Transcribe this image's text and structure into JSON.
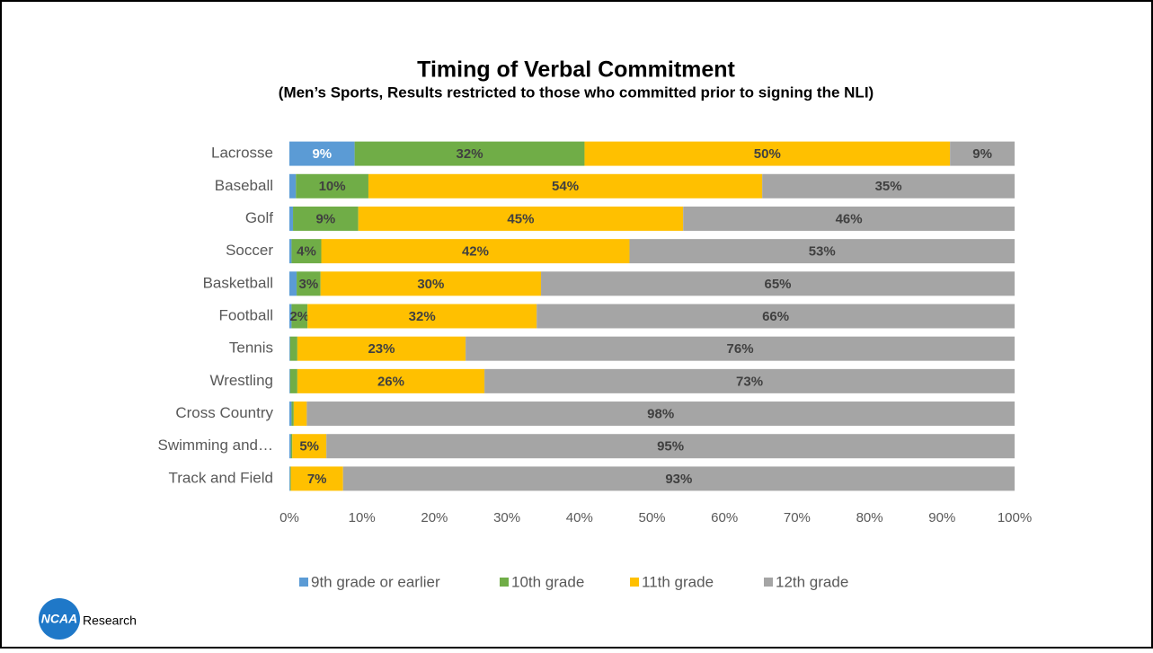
{
  "chart_data": {
    "type": "stacked_bar_horizontal",
    "title": "Timing of Verbal Commitment",
    "subtitle": "(Men’s Sports, Results restricted to those who committed prior to signing the NLI)",
    "categories": [
      "Lacrosse",
      "Baseball",
      "Golf",
      "Soccer",
      "Basketball",
      "Football",
      "Tennis",
      "Wrestling",
      "Cross Country",
      "Swimming and…",
      "Track and Field"
    ],
    "series": [
      {
        "name": "9th grade or earlier",
        "color": "#5b9bd5",
        "values": [
          9,
          0.9,
          0.5,
          0.3,
          1.0,
          0.3,
          0.1,
          0.1,
          0.3,
          0.2,
          0.1
        ],
        "value_labels": [
          "9%",
          null,
          null,
          null,
          null,
          null,
          null,
          null,
          null,
          null,
          null
        ]
      },
      {
        "name": "10th grade",
        "color": "#70ad47",
        "values": [
          31.7,
          10.0,
          9.0,
          4.1,
          3.3,
          2.2,
          1.0,
          1.0,
          0.3,
          0.2,
          0.1
        ],
        "value_labels": [
          "32%",
          "10%",
          "9%",
          "4%",
          "3%",
          "2%",
          null,
          null,
          null,
          null,
          null
        ]
      },
      {
        "name": "11th grade",
        "color": "#ffc000",
        "values": [
          50.4,
          54.3,
          44.8,
          42.5,
          30.4,
          31.6,
          23.2,
          25.8,
          1.8,
          4.7,
          7.2
        ],
        "value_labels": [
          "50%",
          "54%",
          "45%",
          "42%",
          "30%",
          "32%",
          "23%",
          "26%",
          null,
          "5%",
          "7%"
        ]
      },
      {
        "name": "12th grade",
        "color": "#a5a5a5",
        "values": [
          8.9,
          34.8,
          45.7,
          53.1,
          65.3,
          65.9,
          75.7,
          73.1,
          97.6,
          94.9,
          92.6
        ],
        "value_labels": [
          "9%",
          "35%",
          "46%",
          "53%",
          "65%",
          "66%",
          "76%",
          "73%",
          "98%",
          "95%",
          "93%"
        ]
      }
    ],
    "xlim": [
      0,
      100
    ],
    "xticks": [
      {
        "value": 0,
        "label": "0%"
      },
      {
        "value": 10,
        "label": "10%"
      },
      {
        "value": 20,
        "label": "20%"
      },
      {
        "value": 30,
        "label": "30%"
      },
      {
        "value": 40,
        "label": "40%"
      },
      {
        "value": 50,
        "label": "50%"
      },
      {
        "value": 60,
        "label": "60%"
      },
      {
        "value": 70,
        "label": "70%"
      },
      {
        "value": 80,
        "label": "80%"
      },
      {
        "value": 90,
        "label": "90%"
      },
      {
        "value": 100,
        "label": "100%"
      }
    ],
    "grid": false,
    "legend": "bottom"
  },
  "logo": {
    "mark": "NCAA",
    "text": "Research"
  }
}
